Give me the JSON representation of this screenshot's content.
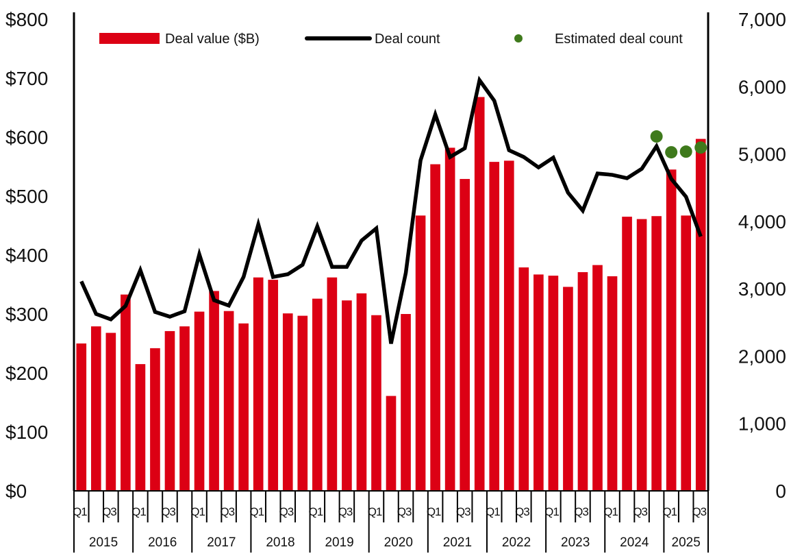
{
  "chart_data": {
    "type": "bar+line",
    "title": "",
    "xlabel": "",
    "ylabel": "",
    "years": [
      "2015",
      "2016",
      "2017",
      "2018",
      "2019",
      "2020",
      "2021",
      "2022",
      "2023",
      "2024",
      "2025"
    ],
    "quarter_tick_labels": [
      "Q1",
      "",
      "Q3",
      ""
    ],
    "categories": [
      "2015 Q1",
      "2015 Q2",
      "2015 Q3",
      "2015 Q4",
      "2016 Q1",
      "2016 Q2",
      "2016 Q3",
      "2016 Q4",
      "2017 Q1",
      "2017 Q2",
      "2017 Q3",
      "2017 Q4",
      "2018 Q1",
      "2018 Q2",
      "2018 Q3",
      "2018 Q4",
      "2019 Q1",
      "2019 Q2",
      "2019 Q3",
      "2019 Q4",
      "2020 Q1",
      "2020 Q2",
      "2020 Q3",
      "2020 Q4",
      "2021 Q1",
      "2021 Q2",
      "2021 Q3",
      "2021 Q4",
      "2022 Q1",
      "2022 Q2",
      "2022 Q3",
      "2022 Q4",
      "2023 Q1",
      "2023 Q2",
      "2023 Q3",
      "2023 Q4",
      "2024 Q1",
      "2024 Q2",
      "2024 Q3",
      "2024 Q4",
      "2025 Q1",
      "2025 Q2",
      "2025 Q3"
    ],
    "y_left": {
      "ylim": [
        0,
        800
      ],
      "ticks": [
        "$0",
        "$100",
        "$200",
        "$300",
        "$400",
        "$500",
        "$600",
        "$700",
        "$800"
      ]
    },
    "y_right": {
      "ylim": [
        0,
        7000
      ],
      "ticks": [
        "0",
        "1,000",
        "2,000",
        "3,000",
        "4,000",
        "5,000",
        "6,000",
        "7,000"
      ]
    },
    "grid": false,
    "legend_position": "top",
    "series": [
      {
        "name": "Deal value ($B)",
        "type": "bar",
        "axis": "left",
        "color": "#dc0014",
        "values": [
          250,
          279,
          268,
          333,
          215,
          242,
          271,
          279,
          304,
          339,
          305,
          284,
          362,
          358,
          301,
          297,
          326,
          362,
          323,
          335,
          298,
          161,
          300,
          467,
          554,
          582,
          529,
          668,
          558,
          560,
          379,
          367,
          365,
          346,
          371,
          383,
          364,
          465,
          461,
          466,
          545,
          467,
          597
        ]
      },
      {
        "name": "Deal count",
        "type": "line",
        "axis": "right",
        "color": "#000000",
        "values": [
          3110,
          2625,
          2545,
          2745,
          3275,
          2655,
          2585,
          2665,
          3510,
          2830,
          2750,
          3175,
          3955,
          3175,
          3215,
          3355,
          3925,
          3325,
          3325,
          3715,
          3895,
          2185,
          3235,
          4905,
          5585,
          4955,
          5085,
          6095,
          5790,
          5055,
          4955,
          4800,
          4945,
          4425,
          4160,
          4710,
          4690,
          4640,
          4780,
          5115,
          4630,
          4365,
          3775
        ]
      },
      {
        "name": "Estimated deal count",
        "type": "scatter",
        "axis": "right",
        "color": "#3f7a1c",
        "points": [
          {
            "x": "2024 Q4",
            "y": 5260
          },
          {
            "x": "2025 Q1",
            "y": 5025
          },
          {
            "x": "2025 Q2",
            "y": 5035
          },
          {
            "x": "2025 Q3",
            "y": 5095
          }
        ]
      }
    ]
  }
}
